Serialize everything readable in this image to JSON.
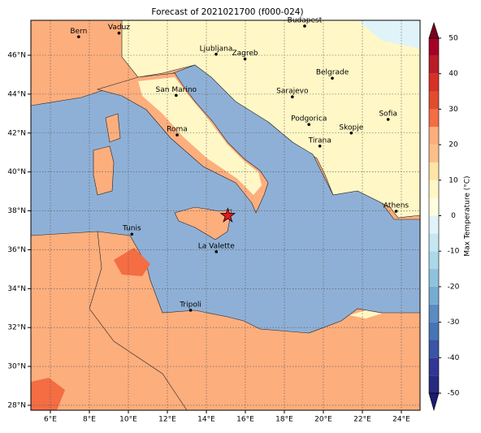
{
  "title": "Forecast of 2021021700 (f000-024)",
  "map": {
    "lon_ticks": [
      {
        "value": 6,
        "label": "6°E"
      },
      {
        "value": 8,
        "label": "8°E"
      },
      {
        "value": 10,
        "label": "10°E"
      },
      {
        "value": 12,
        "label": "12°E"
      },
      {
        "value": 14,
        "label": "14°E"
      },
      {
        "value": 16,
        "label": "16°E"
      },
      {
        "value": 18,
        "label": "18°E"
      },
      {
        "value": 20,
        "label": "20°E"
      },
      {
        "value": 22,
        "label": "22°E"
      },
      {
        "value": 24,
        "label": "24°E"
      }
    ],
    "lat_ticks": [
      {
        "value": 28,
        "label": "28°N"
      },
      {
        "value": 30,
        "label": "30°N"
      },
      {
        "value": 32,
        "label": "32°N"
      },
      {
        "value": 34,
        "label": "34°N"
      },
      {
        "value": 36,
        "label": "36°N"
      },
      {
        "value": 38,
        "label": "38°N"
      },
      {
        "value": 40,
        "label": "40°N"
      },
      {
        "value": 42,
        "label": "42°N"
      },
      {
        "value": 44,
        "label": "44°N"
      },
      {
        "value": 46,
        "label": "46°N"
      }
    ],
    "cities": [
      {
        "name": "Bern",
        "lon": 7.45,
        "lat": 46.95
      },
      {
        "name": "Vaduz",
        "lon": 9.52,
        "lat": 47.14
      },
      {
        "name": "Budapest",
        "lon": 19.04,
        "lat": 47.5
      },
      {
        "name": "Ljubljana",
        "lon": 14.5,
        "lat": 46.05
      },
      {
        "name": "Zagreb",
        "lon": 15.98,
        "lat": 45.81
      },
      {
        "name": "Belgrade",
        "lon": 20.46,
        "lat": 44.82
      },
      {
        "name": "San Marino",
        "lon": 12.45,
        "lat": 43.94
      },
      {
        "name": "Sarajevo",
        "lon": 18.41,
        "lat": 43.86
      },
      {
        "name": "Sofia",
        "lon": 23.32,
        "lat": 42.7
      },
      {
        "name": "Roma",
        "lon": 12.5,
        "lat": 41.9
      },
      {
        "name": "Podgorica",
        "lon": 19.26,
        "lat": 42.44
      },
      {
        "name": "Skopje",
        "lon": 21.43,
        "lat": 42.0
      },
      {
        "name": "Tirana",
        "lon": 19.82,
        "lat": 41.33
      },
      {
        "name": "Athens",
        "lon": 23.73,
        "lat": 37.98
      },
      {
        "name": "Tunis",
        "lon": 10.18,
        "lat": 36.8
      },
      {
        "name": "La Valette",
        "lon": 14.51,
        "lat": 35.9
      },
      {
        "name": "Tripoli",
        "lon": 13.19,
        "lat": 32.89
      }
    ],
    "marker": {
      "lon": 15.1,
      "lat": 37.75,
      "color": "#e41a1c"
    }
  },
  "colorbar": {
    "label": "Max Temperature (°C)",
    "ticks": [
      -50,
      -40,
      -30,
      -20,
      -10,
      0,
      10,
      20,
      30,
      40,
      50
    ],
    "levels": [
      -50,
      -45,
      -40,
      -35,
      -30,
      -25,
      -20,
      -15,
      -10,
      -5,
      0,
      5,
      10,
      15,
      20,
      25,
      30,
      35,
      40,
      45,
      50
    ],
    "colors": [
      "#262a82",
      "#313695",
      "#3a55a5",
      "#4575b4",
      "#5b8bc0",
      "#74add1",
      "#8fc3dd",
      "#abd9e9",
      "#c6e6f0",
      "#e0f3f8",
      "#fffde0",
      "#fff7c6",
      "#fee5a6",
      "#fdbf8a",
      "#fdae7d",
      "#f46d43",
      "#e24c2e",
      "#d73027",
      "#b81d25",
      "#a50026"
    ],
    "under": "#1c1c70",
    "over": "#7a0020"
  }
}
